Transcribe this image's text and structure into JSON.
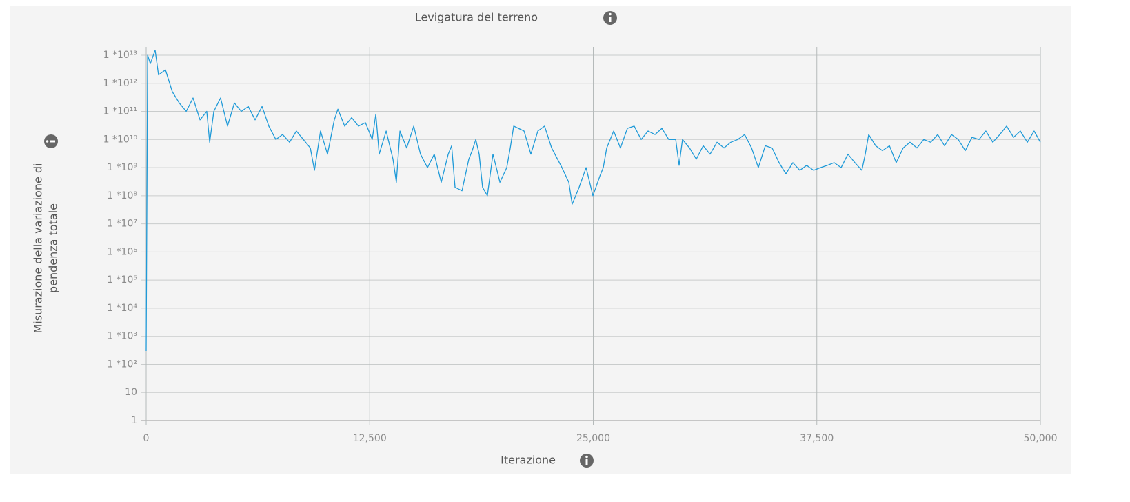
{
  "chart_data": {
    "type": "line",
    "title": "Levigatura del terreno",
    "xlabel": "Iterazione",
    "ylabel": [
      "Misurazione della variazione di",
      "pendenza totale"
    ],
    "color": "#1f9ad8",
    "log": true,
    "grid": true,
    "xlim": [
      0,
      50000
    ],
    "xticks": [
      0,
      {
        "value": 12500,
        "label": "12,500"
      },
      {
        "value": 25000,
        "label": "25,000"
      },
      {
        "value": 37500,
        "label": "37,500"
      },
      {
        "value": 50000,
        "label": "50,000"
      }
    ],
    "ylim": [
      1,
      10000000000000.0
    ],
    "yticks": [
      1,
      10,
      {
        "value": 100.0,
        "label": "1 *10²"
      },
      {
        "value": 1000.0,
        "label": "1 *10³"
      },
      {
        "value": 10000.0,
        "label": "1 *10⁴"
      },
      {
        "value": 100000.0,
        "label": "1 *10⁵"
      },
      {
        "value": 1000000.0,
        "label": "1 *10⁶"
      },
      {
        "value": 10000000.0,
        "label": "1 *10⁷"
      },
      {
        "value": 100000000.0,
        "label": "1 *10⁸"
      },
      {
        "value": 1000000000.0,
        "label": "1 *10⁹"
      },
      {
        "value": 10000000000.0,
        "label": "1 *10¹⁰"
      },
      {
        "value": 100000000000.0,
        "label": "1 *10¹¹"
      },
      {
        "value": 1000000000000.0,
        "label": "1 *10¹²"
      },
      {
        "value": 10000000000000.0,
        "label": "1 *10¹³"
      }
    ],
    "x": [
      0,
      80,
      230,
      500,
      690,
      1080,
      1460,
      1850,
      2240,
      2620,
      3010,
      3390,
      3550,
      3780,
      4160,
      4550,
      4930,
      5320,
      5710,
      6090,
      6480,
      6860,
      7250,
      7630,
      8020,
      8400,
      8790,
      9180,
      9410,
      9750,
      10140,
      10520,
      10720,
      11100,
      11490,
      11870,
      12260,
      12640,
      12840,
      13030,
      13420,
      13800,
      13990,
      14190,
      14570,
      14960,
      15340,
      15730,
      16110,
      16500,
      16890,
      17080,
      17270,
      17660,
      18040,
      18230,
      18430,
      18620,
      18810,
      19080,
      19390,
      19580,
      19780,
      20160,
      20360,
      20550,
      21130,
      21510,
      21900,
      22280,
      22670,
      23250,
      23630,
      23820,
      24210,
      24600,
      24980,
      25370,
      25560,
      25750,
      26140,
      26520,
      26910,
      27290,
      27680,
      28060,
      28450,
      28840,
      29220,
      29610,
      29800,
      29990,
      30380,
      30760,
      31150,
      31530,
      31920,
      32310,
      32690,
      33080,
      33460,
      33850,
      34230,
      34620,
      35000,
      35390,
      35770,
      36160,
      36550,
      36930,
      37320,
      37700,
      38090,
      38470,
      38860,
      39240,
      39630,
      40020,
      40210,
      40400,
      40790,
      41170,
      41560,
      41940,
      42330,
      42710,
      43100,
      43480,
      43870,
      44260,
      44640,
      45030,
      45410,
      45800,
      46180,
      46570,
      46950,
      47340,
      47730,
      48110,
      48500,
      48880,
      49270,
      49650,
      50000
    ],
    "values": [
      300,
      10000000000000.0,
      5000000000000.0,
      15000000000000.0,
      2000000000000.0,
      3000000000000.0,
      500000000000.0,
      200000000000.0,
      100000000000.0,
      300000000000.0,
      50000000000.0,
      100000000000.0,
      8000000000.0,
      100000000000.0,
      300000000000.0,
      30000000000.0,
      200000000000.0,
      100000000000.0,
      150000000000.0,
      50000000000.0,
      150000000000.0,
      30000000000.0,
      10000000000.0,
      15000000000.0,
      8000000000.0,
      20000000000.0,
      10000000000.0,
      5000000000.0,
      800000000.0,
      20000000000.0,
      3000000000.0,
      50000000000.0,
      120000000000.0,
      30000000000.0,
      60000000000.0,
      30000000000.0,
      40000000000.0,
      10000000000.0,
      80000000000.0,
      3000000000.0,
      20000000000.0,
      2000000000.0,
      300000000.0,
      20000000000.0,
      5000000000.0,
      30000000000.0,
      3000000000.0,
      1000000000.0,
      3000000000.0,
      300000000.0,
      3000000000.0,
      6000000000.0,
      200000000.0,
      150000000.0,
      2000000000.0,
      4000000000.0,
      10000000000.0,
      3000000000.0,
      200000000.0,
      100000000.0,
      3000000000.0,
      1000000000.0,
      300000000.0,
      1000000000.0,
      5000000000.0,
      30000000000.0,
      20000000000.0,
      3000000000.0,
      20000000000.0,
      30000000000.0,
      5000000000.0,
      1000000000.0,
      300000000.0,
      50000000.0,
      200000000.0,
      1000000000.0,
      100000000.0,
      500000000.0,
      1000000000.0,
      5000000000.0,
      20000000000.0,
      5000000000.0,
      25000000000.0,
      30000000000.0,
      10000000000.0,
      20000000000.0,
      15000000000.0,
      25000000000.0,
      10000000000.0,
      10000000000.0,
      1200000000.0,
      10000000000.0,
      5000000000.0,
      2000000000.0,
      6000000000.0,
      3000000000.0,
      8000000000.0,
      5000000000.0,
      8000000000.0,
      10000000000.0,
      15000000000.0,
      5000000000.0,
      1000000000.0,
      6000000000.0,
      5000000000.0,
      1500000000.0,
      600000000.0,
      1500000000.0,
      800000000.0,
      1200000000.0,
      800000000.0,
      1000000000.0,
      1200000000.0,
      1500000000.0,
      1000000000.0,
      3000000000.0,
      1500000000.0,
      800000000.0,
      3000000000.0,
      15000000000.0,
      6000000000.0,
      4000000000.0,
      6000000000.0,
      1500000000.0,
      5000000000.0,
      8000000000.0,
      5000000000.0,
      10000000000.0,
      8000000000.0,
      15000000000.0,
      6000000000.0,
      15000000000.0,
      10000000000.0,
      4000000000.0,
      12000000000.0,
      10000000000.0,
      20000000000.0,
      8000000000.0,
      15000000000.0,
      30000000000.0,
      12000000000.0,
      20000000000.0,
      8000000000.0,
      20000000000.0,
      8000000000.0
    ]
  }
}
